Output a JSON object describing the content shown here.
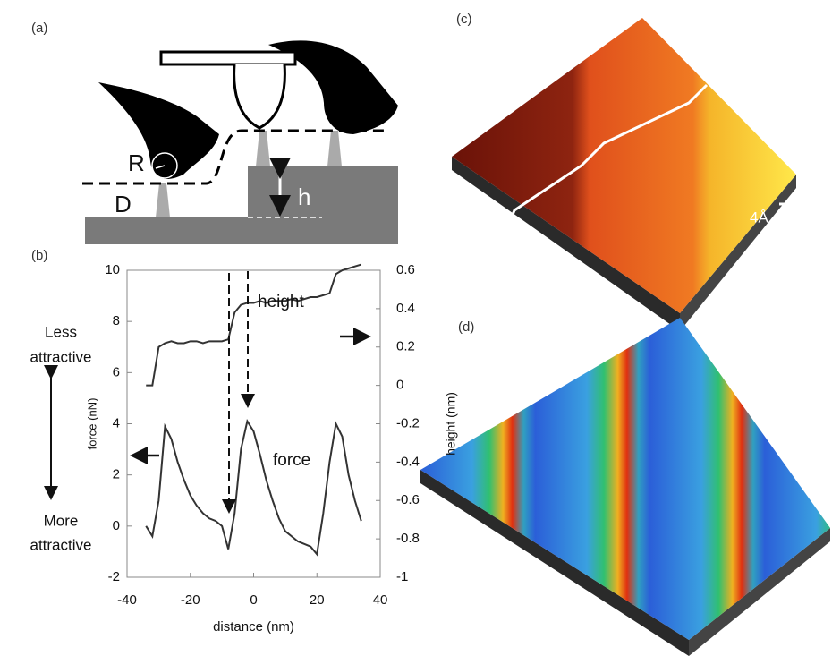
{
  "panel_labels": [
    "(a)",
    "(b)",
    "(c)",
    "(d)"
  ],
  "diagram": {
    "radius_label": "R",
    "distance_label": "D",
    "height_label": "h"
  },
  "scale_bar": "4Å",
  "side_labels": {
    "less": [
      "Less",
      "attractive"
    ],
    "more": [
      "More",
      "attractive"
    ]
  },
  "chart_data": {
    "type": "line",
    "xlabel": "distance (nm)",
    "ylabel": "force (nN)",
    "y2label": "height (nm)",
    "x": [
      -34,
      -32,
      -30,
      -28,
      -26,
      -24,
      -22,
      -20,
      -18,
      -16,
      -14,
      -12,
      -10,
      -8,
      -6,
      -4,
      -2,
      0,
      2,
      4,
      6,
      8,
      10,
      12,
      14,
      16,
      18,
      20,
      22,
      24,
      26,
      28,
      30,
      32,
      34
    ],
    "series": [
      {
        "name": "force",
        "color": "#333333",
        "values": [
          0,
          -0.4,
          1,
          3.9,
          3.4,
          2.5,
          1.8,
          1.2,
          0.8,
          0.5,
          0.3,
          0.2,
          0,
          -0.9,
          0.5,
          3,
          4.1,
          3.7,
          2.8,
          1.8,
          1,
          0.3,
          -0.2,
          -0.4,
          -0.6,
          -0.7,
          -0.8,
          -1.1,
          0.5,
          2.5,
          4,
          3.5,
          2,
          1,
          0.2
        ]
      },
      {
        "name": "height",
        "color": "#333333",
        "axis": "y2",
        "values": [
          0,
          0,
          0.2,
          0.22,
          0.23,
          0.22,
          0.22,
          0.23,
          0.23,
          0.22,
          0.23,
          0.23,
          0.23,
          0.24,
          0.38,
          0.42,
          0.43,
          0.43,
          0.44,
          0.43,
          0.44,
          0.44,
          0.44,
          0.45,
          0.44,
          0.45,
          0.46,
          0.46,
          0.47,
          0.48,
          0.58,
          0.6,
          0.61,
          0.62,
          0.63
        ]
      }
    ],
    "xlim": [
      -40,
      40
    ],
    "xticks": [
      -40,
      -20,
      0,
      20,
      40
    ],
    "ylim": [
      -2,
      10
    ],
    "yticks": [
      -2,
      0,
      2,
      4,
      6,
      8,
      10
    ],
    "y2lim": [
      -1,
      0.6
    ],
    "y2ticks": [
      -1,
      -0.8,
      -0.6,
      -0.4,
      -0.2,
      0,
      0.2,
      0.4,
      0.6
    ]
  }
}
